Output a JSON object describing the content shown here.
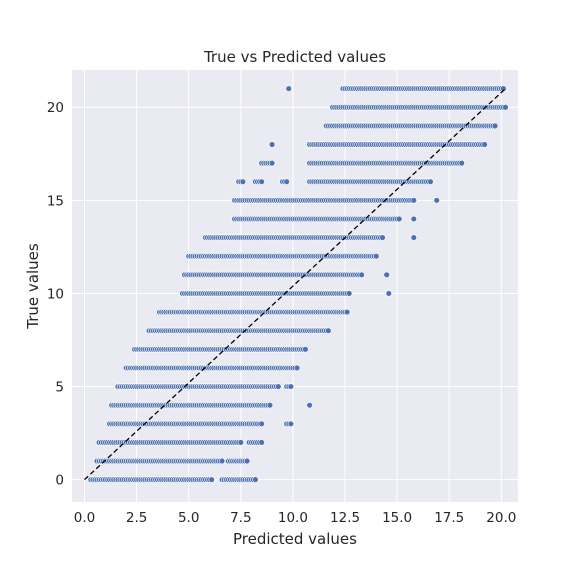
{
  "chart_data": {
    "type": "scatter",
    "title": "True vs Predicted values",
    "xlabel": "Predicted values",
    "ylabel": "True values",
    "xlim": [
      -0.6,
      20.8
    ],
    "ylim": [
      -1.2,
      22.0
    ],
    "x_ticks": [
      0.0,
      2.5,
      5.0,
      7.5,
      10.0,
      12.5,
      15.0,
      17.5,
      20.0
    ],
    "x_tick_labels": [
      "0.0",
      "2.5",
      "5.0",
      "7.5",
      "10.0",
      "12.5",
      "15.0",
      "17.5",
      "20.0"
    ],
    "y_ticks": [
      0,
      5,
      10,
      15,
      20
    ],
    "y_tick_labels": [
      "0",
      "5",
      "10",
      "15",
      "20"
    ],
    "grid": true,
    "background": "#eaeaf2",
    "point_color": "#4c72b0",
    "reference_line": {
      "style": "dashed",
      "color": "#000000",
      "from": [
        0,
        0
      ],
      "to": [
        20.2,
        21
      ]
    },
    "series": [
      {
        "rows": [
          {
            "y": 0,
            "ranges": [
              [
                0.3,
                6.1
              ],
              [
                6.6,
                8.2
              ]
            ]
          },
          {
            "y": 1,
            "ranges": [
              [
                0.6,
                6.6
              ],
              [
                6.9,
                7.8
              ]
            ]
          },
          {
            "y": 2,
            "ranges": [
              [
                0.7,
                7.5
              ],
              [
                7.9,
                8.5
              ]
            ]
          },
          {
            "y": 3,
            "ranges": [
              [
                1.2,
                8.5
              ],
              [
                9.7,
                9.9
              ]
            ]
          },
          {
            "y": 4,
            "ranges": [
              [
                1.3,
                8.9
              ],
              [
                10.8,
                10.8
              ]
            ]
          },
          {
            "y": 5,
            "ranges": [
              [
                1.6,
                9.3
              ],
              [
                9.7,
                9.9
              ]
            ]
          },
          {
            "y": 6,
            "ranges": [
              [
                2.0,
                10.2
              ]
            ]
          },
          {
            "y": 7,
            "ranges": [
              [
                2.4,
                10.6
              ]
            ]
          },
          {
            "y": 8,
            "ranges": [
              [
                3.1,
                11.7
              ]
            ]
          },
          {
            "y": 9,
            "ranges": [
              [
                3.6,
                12.6
              ]
            ]
          },
          {
            "y": 10,
            "ranges": [
              [
                4.7,
                12.7
              ],
              [
                14.6,
                14.6
              ]
            ]
          },
          {
            "y": 11,
            "ranges": [
              [
                4.8,
                13.3
              ],
              [
                14.5,
                14.5
              ]
            ]
          },
          {
            "y": 12,
            "ranges": [
              [
                5.0,
                14.0
              ]
            ]
          },
          {
            "y": 13,
            "ranges": [
              [
                5.8,
                14.3
              ],
              [
                15.8,
                15.8
              ]
            ]
          },
          {
            "y": 14,
            "ranges": [
              [
                7.2,
                15.1
              ],
              [
                15.8,
                15.8
              ]
            ]
          },
          {
            "y": 15,
            "ranges": [
              [
                7.2,
                15.8
              ],
              [
                16.9,
                16.9
              ]
            ]
          },
          {
            "y": 16,
            "ranges": [
              [
                7.4,
                7.6
              ],
              [
                8.2,
                8.5
              ],
              [
                9.5,
                9.7
              ],
              [
                10.8,
                16.6
              ]
            ]
          },
          {
            "y": 17,
            "ranges": [
              [
                8.5,
                9.0
              ],
              [
                10.8,
                18.1
              ]
            ]
          },
          {
            "y": 18,
            "ranges": [
              [
                9.0,
                9.0
              ],
              [
                10.8,
                19.2
              ]
            ]
          },
          {
            "y": 19,
            "ranges": [
              [
                11.6,
                19.7
              ]
            ]
          },
          {
            "y": 20,
            "ranges": [
              [
                11.9,
                20.2
              ]
            ]
          },
          {
            "y": 21,
            "ranges": [
              [
                9.8,
                9.8
              ],
              [
                12.4,
                20.1
              ]
            ]
          }
        ]
      }
    ]
  }
}
